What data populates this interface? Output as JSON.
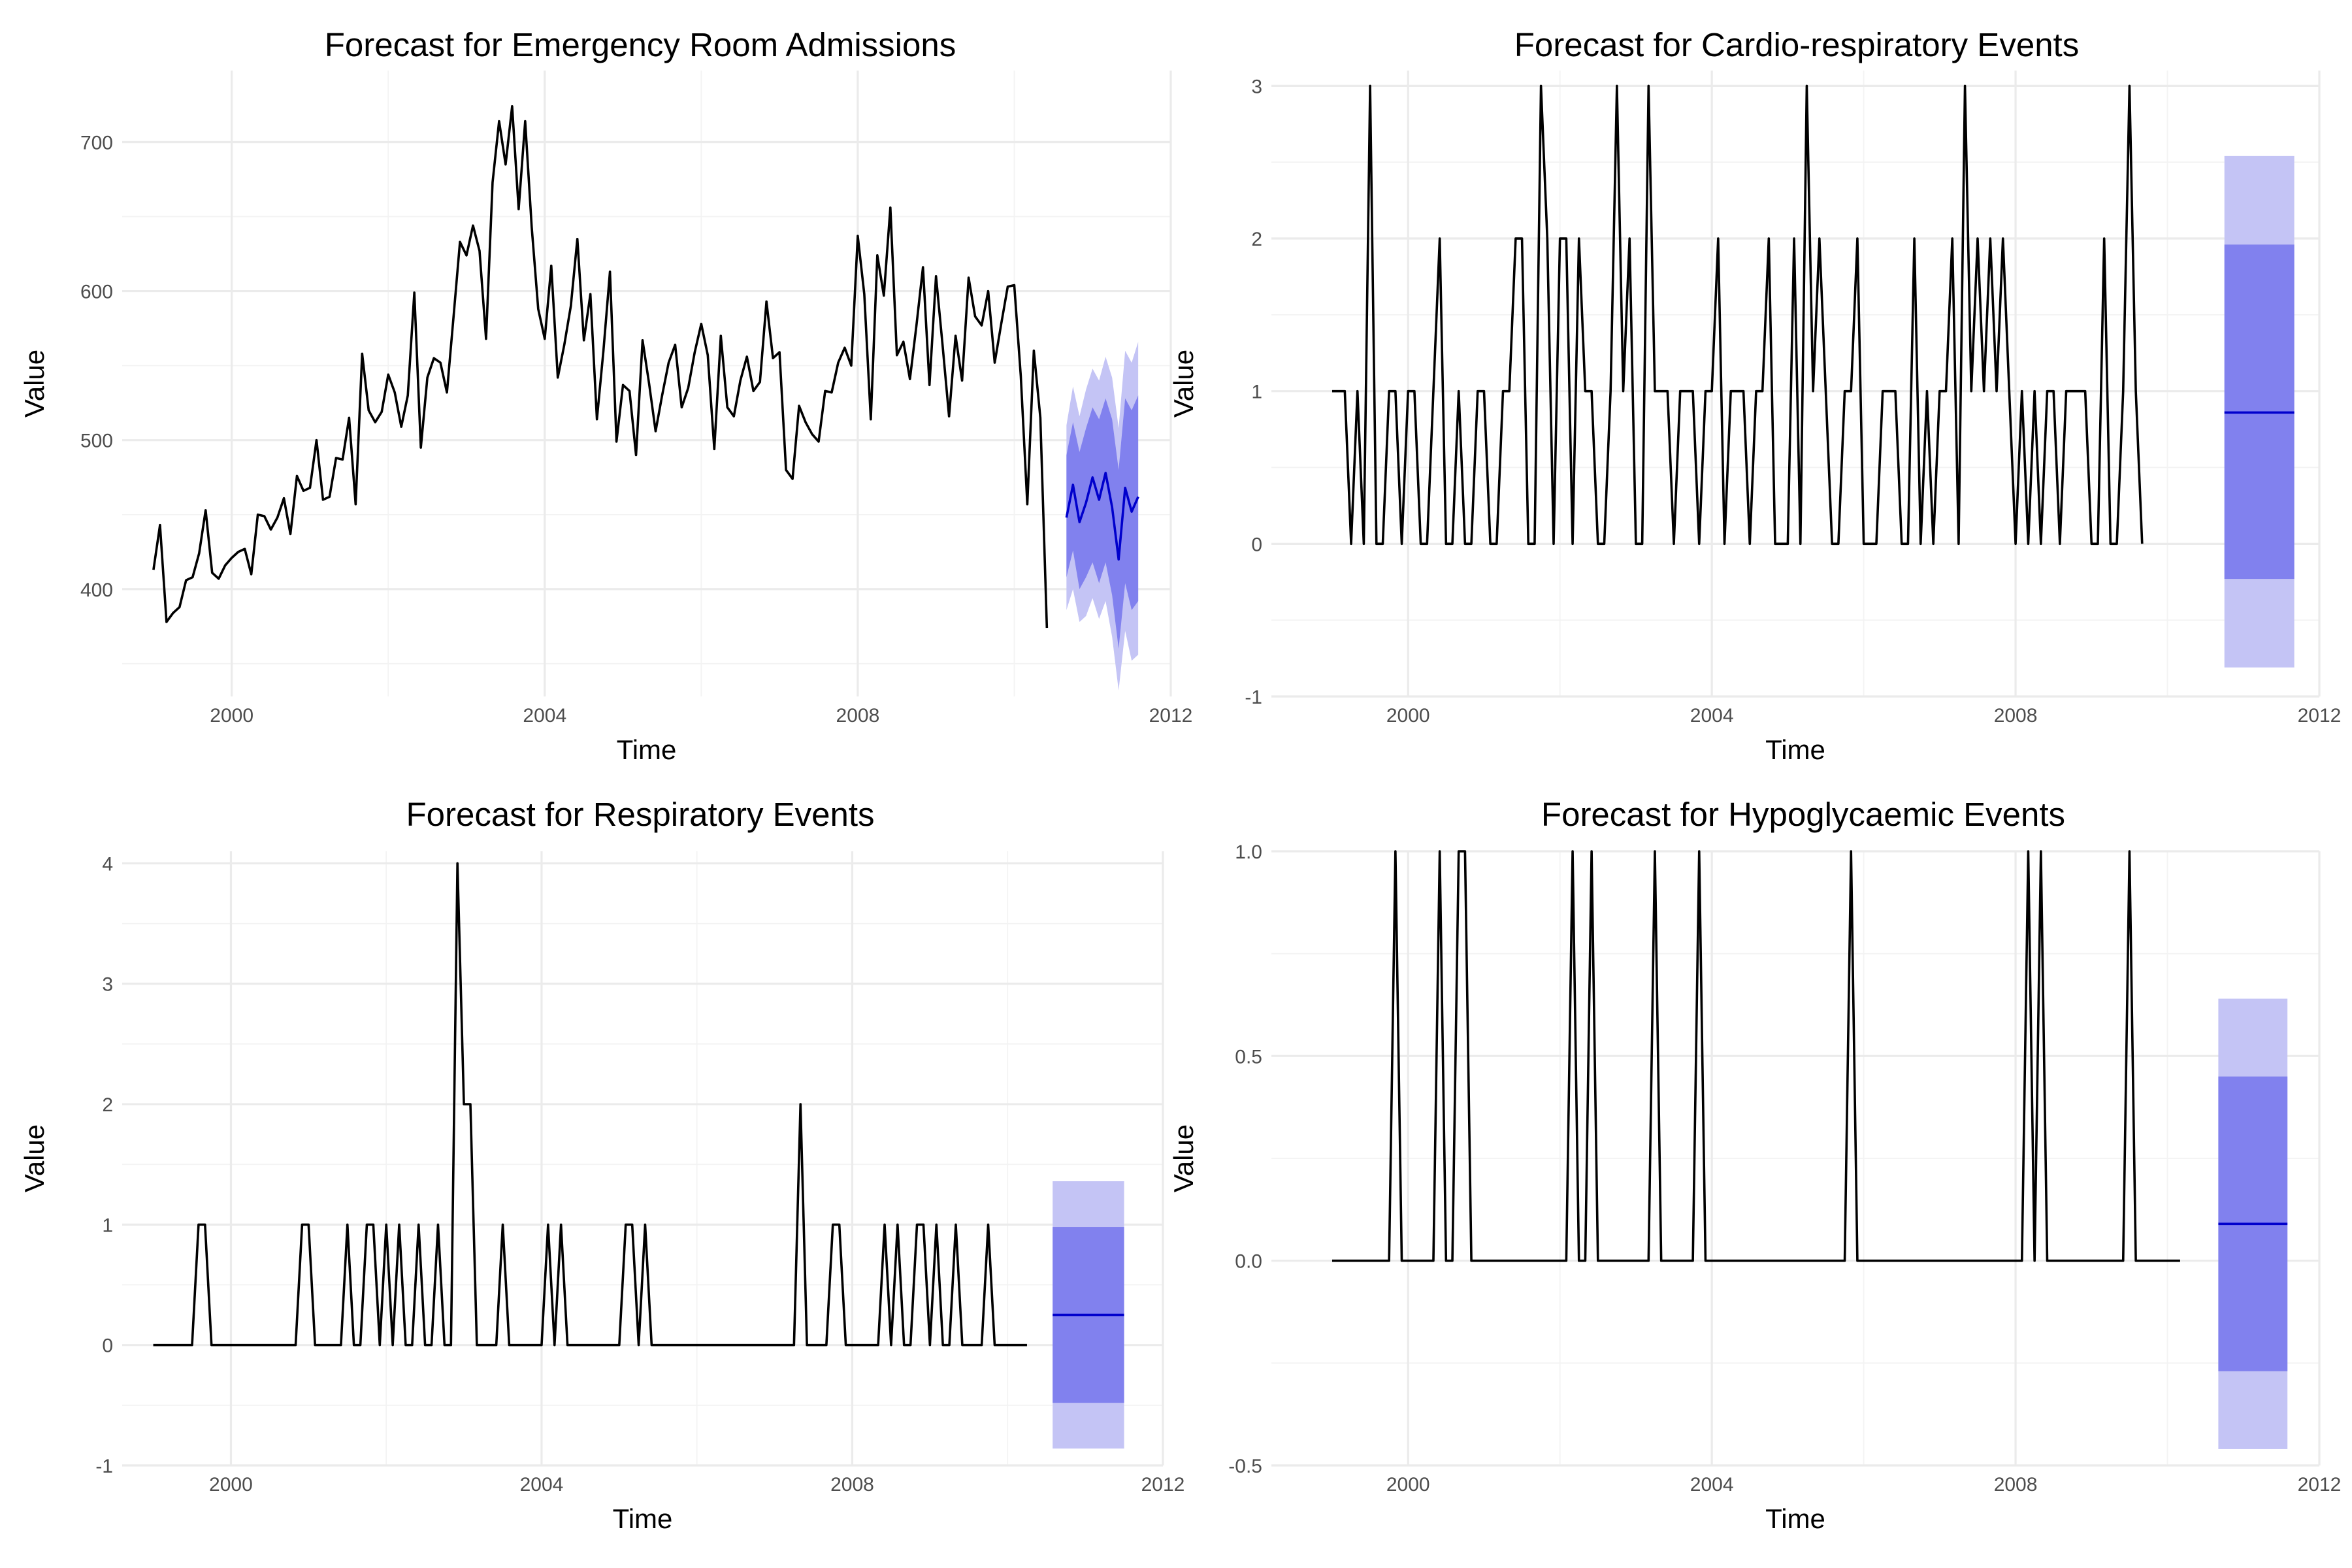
{
  "colors": {
    "pi95": "#c4c4f5",
    "pi80": "#8181ee",
    "forecast_line": "#0000cc",
    "history_line": "#000000",
    "grid": "#ebebeb"
  },
  "chart_data": [
    {
      "type": "line",
      "title": "Forecast for Emergency Room Admissions",
      "xlabel": "Time",
      "ylabel": "Value",
      "xlim": [
        1998.6,
        2012.0
      ],
      "ylim": [
        328,
        748
      ],
      "x_ticks": [
        2000,
        2004,
        2008,
        2012
      ],
      "y_ticks": [
        400,
        500,
        600,
        700
      ],
      "y_tick_labels": [
        "400",
        "500",
        "600",
        "700"
      ],
      "history": {
        "start": 1999.0,
        "step": 0.0833333,
        "values": [
          413,
          443,
          378,
          384,
          388,
          406,
          408,
          424,
          453,
          411,
          407,
          416,
          421,
          425,
          427,
          410,
          450,
          449,
          440,
          448,
          461,
          437,
          476,
          466,
          468,
          500,
          460,
          462,
          488,
          487,
          515,
          457,
          558,
          520,
          512,
          519,
          544,
          532,
          509,
          530,
          599,
          495,
          542,
          555,
          552,
          532,
          582,
          633,
          624,
          644,
          627,
          568,
          673,
          714,
          685,
          724,
          655,
          714,
          643,
          588,
          568,
          617,
          542,
          564,
          590,
          635,
          567,
          598,
          514,
          560,
          613,
          499,
          537,
          533,
          490,
          567,
          538,
          506,
          530,
          552,
          564,
          522,
          535,
          559,
          578,
          557,
          494,
          570,
          522,
          516,
          540,
          556,
          533,
          539,
          593,
          555,
          559,
          480,
          474,
          523,
          512,
          504,
          499,
          533,
          532,
          552,
          562,
          550,
          637,
          598,
          514,
          624,
          597,
          656,
          557,
          566,
          541,
          577,
          616,
          537,
          610,
          564,
          516,
          570,
          540,
          609,
          583,
          577,
          600,
          552,
          578,
          603,
          604,
          543,
          457,
          560,
          515,
          374
        ]
      },
      "forecast": {
        "start": 2010.667,
        "step": 0.0833333,
        "mean": [
          448,
          470,
          445,
          458,
          475,
          460,
          478,
          455,
          420,
          468,
          452,
          462
        ],
        "lo80": [
          408,
          426,
          400,
          408,
          418,
          404,
          418,
          396,
          360,
          404,
          386,
          392
        ],
        "hi80": [
          490,
          512,
          492,
          508,
          522,
          514,
          528,
          514,
          480,
          528,
          520,
          530
        ],
        "lo95": [
          386,
          400,
          378,
          382,
          394,
          380,
          392,
          368,
          332,
          372,
          352,
          356
        ],
        "hi95": [
          510,
          536,
          516,
          534,
          548,
          540,
          556,
          542,
          508,
          560,
          552,
          566
        ]
      }
    },
    {
      "type": "line",
      "title": "Forecast for Cardio-respiratory Events",
      "xlabel": "Time",
      "ylabel": "Value",
      "xlim": [
        1998.2,
        2012.0
      ],
      "ylim": [
        -1,
        3.1
      ],
      "x_ticks": [
        2000,
        2004,
        2008,
        2012
      ],
      "y_ticks": [
        -1,
        0,
        1,
        2,
        3
      ],
      "y_tick_labels": [
        "-1",
        "0",
        "1",
        "2",
        "3"
      ],
      "history": {
        "start": 1999.0,
        "step": 0.0833333,
        "values": [
          1,
          1,
          1,
          0,
          1,
          0,
          3,
          0,
          0,
          1,
          1,
          0,
          1,
          1,
          0,
          0,
          1,
          2,
          0,
          0,
          1,
          0,
          0,
          1,
          1,
          0,
          0,
          1,
          1,
          2,
          2,
          0,
          0,
          3,
          2,
          0,
          2,
          2,
          0,
          2,
          1,
          1,
          0,
          0,
          1,
          3,
          1,
          2,
          0,
          0,
          3,
          1,
          1,
          1,
          0,
          1,
          1,
          1,
          0,
          1,
          1,
          2,
          0,
          1,
          1,
          1,
          0,
          1,
          1,
          2,
          0,
          0,
          0,
          2,
          0,
          3,
          1,
          2,
          1,
          0,
          0,
          1,
          1,
          2,
          0,
          0,
          0,
          1,
          1,
          1,
          0,
          0,
          2,
          0,
          1,
          0,
          1,
          1,
          2,
          0,
          3,
          1,
          2,
          1,
          2,
          1,
          2,
          1,
          0,
          1,
          0,
          1,
          0,
          1,
          1,
          0,
          1,
          1,
          1,
          1,
          0,
          0,
          2,
          0,
          0,
          1,
          3,
          1,
          0
        ]
      },
      "forecast": {
        "start": 2010.75,
        "end": 2011.67,
        "mean": [
          0.86
        ],
        "lo80": [
          -0.23
        ],
        "hi80": [
          1.96
        ],
        "lo95": [
          -0.81
        ],
        "hi95": [
          2.54
        ]
      }
    },
    {
      "type": "line",
      "title": "Forecast for Respiratory Events",
      "xlabel": "Time",
      "ylabel": "Value",
      "xlim": [
        1998.6,
        2012.0
      ],
      "ylim": [
        -1,
        4.1
      ],
      "x_ticks": [
        2000,
        2004,
        2008,
        2012
      ],
      "y_ticks": [
        -1,
        0,
        1,
        2,
        3,
        4
      ],
      "y_tick_labels": [
        "-1",
        "0",
        "1",
        "2",
        "3",
        "4"
      ],
      "history": {
        "start": 1999.0,
        "step": 0.0833333,
        "values": [
          0,
          0,
          0,
          0,
          0,
          0,
          0,
          1,
          1,
          0,
          0,
          0,
          0,
          0,
          0,
          0,
          0,
          0,
          0,
          0,
          0,
          0,
          0,
          1,
          1,
          0,
          0,
          0,
          0,
          0,
          1,
          0,
          0,
          1,
          1,
          0,
          1,
          0,
          1,
          0,
          0,
          1,
          0,
          0,
          1,
          0,
          0,
          4,
          2,
          2,
          0,
          0,
          0,
          0,
          1,
          0,
          0,
          0,
          0,
          0,
          0,
          1,
          0,
          1,
          0,
          0,
          0,
          0,
          0,
          0,
          0,
          0,
          0,
          1,
          1,
          0,
          1,
          0,
          0,
          0,
          0,
          0,
          0,
          0,
          0,
          0,
          0,
          0,
          0,
          0,
          0,
          0,
          0,
          0,
          0,
          0,
          0,
          0,
          0,
          0,
          2,
          0,
          0,
          0,
          0,
          1,
          1,
          0,
          0,
          0,
          0,
          0,
          0,
          1,
          0,
          1,
          0,
          0,
          1,
          1,
          0,
          1,
          0,
          0,
          1,
          0,
          0,
          0,
          0,
          1,
          0,
          0,
          0,
          0,
          0,
          0
        ]
      },
      "forecast": {
        "start": 2010.58,
        "end": 2011.5,
        "mean": [
          0.25
        ],
        "lo80": [
          -0.48
        ],
        "hi80": [
          0.98
        ],
        "lo95": [
          -0.86
        ],
        "hi95": [
          1.36
        ]
      }
    },
    {
      "type": "line",
      "title": "Forecast for Hypoglycaemic Events",
      "xlabel": "Time",
      "ylabel": "Value",
      "xlim": [
        1998.2,
        2012.0
      ],
      "ylim": [
        -0.5,
        1.0
      ],
      "x_ticks": [
        2000,
        2004,
        2008,
        2012
      ],
      "y_ticks": [
        -0.5,
        0.0,
        0.5,
        1.0
      ],
      "y_tick_labels": [
        "-0.5",
        "0.0",
        "0.5",
        "1.0"
      ],
      "history": {
        "start": 1999.0,
        "step": 0.0833333,
        "values": [
          0,
          0,
          0,
          0,
          0,
          0,
          0,
          0,
          0,
          0,
          1,
          0,
          0,
          0,
          0,
          0,
          0,
          1,
          0,
          0,
          1,
          1,
          0,
          0,
          0,
          0,
          0,
          0,
          0,
          0,
          0,
          0,
          0,
          0,
          0,
          0,
          0,
          0,
          1,
          0,
          0,
          1,
          0,
          0,
          0,
          0,
          0,
          0,
          0,
          0,
          0,
          1,
          0,
          0,
          0,
          0,
          0,
          0,
          1,
          0,
          0,
          0,
          0,
          0,
          0,
          0,
          0,
          0,
          0,
          0,
          0,
          0,
          0,
          0,
          0,
          0,
          0,
          0,
          0,
          0,
          0,
          0,
          1,
          0,
          0,
          0,
          0,
          0,
          0,
          0,
          0,
          0,
          0,
          0,
          0,
          0,
          0,
          0,
          0,
          0,
          0,
          0,
          0,
          0,
          0,
          0,
          0,
          0,
          0,
          0,
          1,
          0,
          1,
          0,
          0,
          0,
          0,
          0,
          0,
          0,
          0,
          0,
          0,
          0,
          0,
          0,
          1,
          0,
          0,
          0,
          0,
          0,
          0,
          0,
          0
        ]
      },
      "forecast": {
        "start": 2010.67,
        "end": 2011.58,
        "mean": [
          0.09
        ],
        "lo80": [
          -0.27
        ],
        "hi80": [
          0.45
        ],
        "lo95": [
          -0.46
        ],
        "hi95": [
          0.64
        ]
      }
    }
  ]
}
